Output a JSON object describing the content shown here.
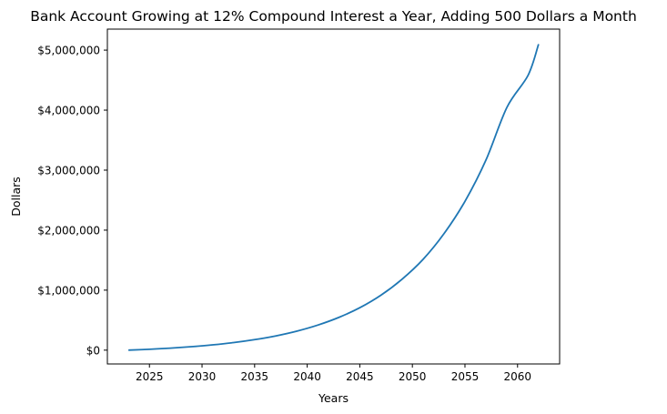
{
  "chart_data": {
    "type": "line",
    "title": "Bank Account Growing at 12% Compound Interest a Year, Adding 500 Dollars a Month",
    "xlabel": "Years",
    "ylabel": "Dollars",
    "xlim": [
      2021,
      2064
    ],
    "ylim": [
      -230000,
      5350000
    ],
    "grid": false,
    "x_ticks": [
      2025,
      2030,
      2035,
      2040,
      2045,
      2050,
      2055,
      2060
    ],
    "x_tick_labels": [
      "2025",
      "2030",
      "2035",
      "2040",
      "2045",
      "2050",
      "2055",
      "2060"
    ],
    "y_ticks": [
      0,
      1000000,
      2000000,
      3000000,
      4000000,
      5000000
    ],
    "y_tick_labels": [
      "$0",
      "$1,000,000",
      "$2,000,000",
      "$3,000,000",
      "$4,000,000",
      "$5,000,000"
    ],
    "series": [
      {
        "color": "#1f77b4",
        "x": [
          2023,
          2025,
          2027,
          2029,
          2031,
          2033,
          2035,
          2037,
          2039,
          2041,
          2043,
          2045,
          2047,
          2049,
          2051,
          2053,
          2055,
          2057,
          2059,
          2061,
          2062
        ],
        "y": [
          0,
          15000,
          34000,
          58000,
          88000,
          126000,
          175000,
          237000,
          316000,
          417000,
          545000,
          707000,
          915000,
          1180000,
          1510000,
          1940000,
          2480000,
          3170000,
          4050000,
          4580000,
          5100000
        ]
      }
    ]
  }
}
